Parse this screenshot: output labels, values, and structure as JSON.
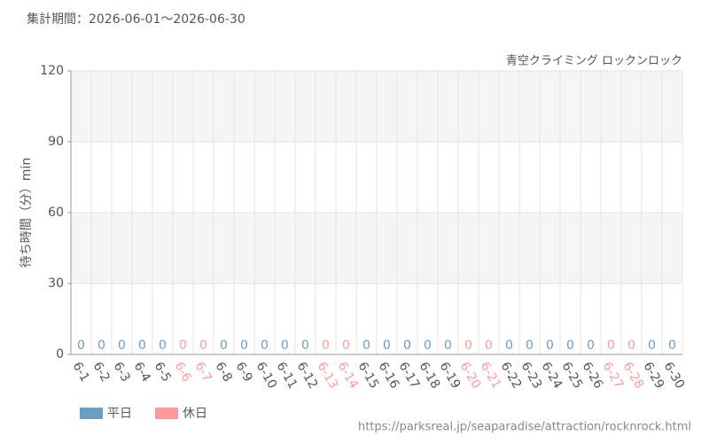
{
  "chart_data": {
    "type": "bar",
    "title": "集計期間：2026-06-01～2026-06-30",
    "subtitle": "青空クライミング ロックンロック",
    "y_label": "待ち時間（分）min",
    "footer": "https://parksreal.jp/seaparadise/attraction/rocknrock.html",
    "categories": [
      "6-1",
      "6-2",
      "6-3",
      "6-4",
      "6-5",
      "6-6",
      "6-7",
      "6-8",
      "6-9",
      "6-10",
      "6-11",
      "6-12",
      "6-13",
      "6-14",
      "6-15",
      "6-16",
      "6-17",
      "6-18",
      "6-19",
      "6-20",
      "6-21",
      "6-22",
      "6-23",
      "6-24",
      "6-25",
      "6-26",
      "6-27",
      "6-28",
      "6-29",
      "6-30"
    ],
    "series": [
      {
        "name": "平日",
        "color": "#6a9ec5",
        "values": [
          0,
          0,
          0,
          0,
          0,
          null,
          null,
          0,
          0,
          0,
          0,
          0,
          null,
          null,
          0,
          0,
          0,
          0,
          0,
          null,
          null,
          0,
          0,
          0,
          0,
          0,
          null,
          null,
          0,
          0
        ]
      },
      {
        "name": "休日",
        "color": "#ff9999",
        "values": [
          null,
          null,
          null,
          null,
          null,
          0,
          0,
          null,
          null,
          null,
          null,
          null,
          0,
          0,
          null,
          null,
          null,
          null,
          null,
          0,
          0,
          null,
          null,
          null,
          null,
          null,
          0,
          0,
          null,
          null
        ]
      }
    ],
    "ylim": [
      0,
      120
    ],
    "yticks": [
      0,
      30,
      60,
      90,
      120
    ],
    "grid": true
  }
}
